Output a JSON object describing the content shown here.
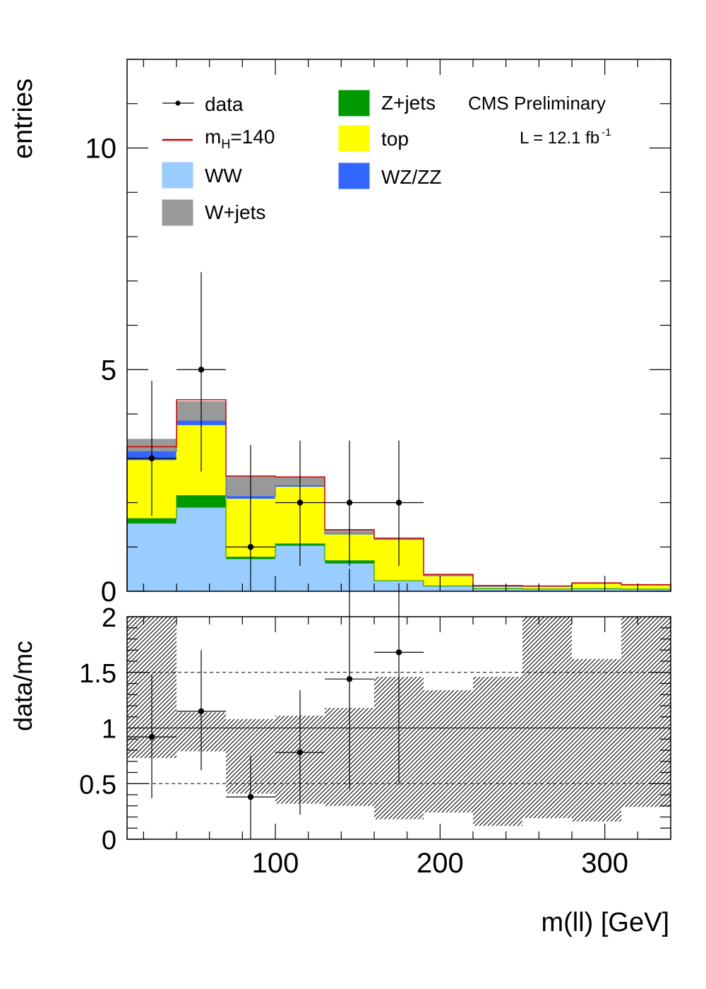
{
  "chart_data": [
    {
      "type": "bar",
      "subtype": "stacked-histogram",
      "bin_edges": [
        10,
        40,
        70,
        100,
        130,
        160,
        190,
        220,
        250,
        280,
        310,
        340
      ],
      "ylabel": "entries",
      "ylim": [
        0,
        12
      ],
      "yticks": [
        0,
        5,
        10
      ],
      "experiment_label": "CMS Preliminary",
      "lumi_label": "L = 12.1 fb",
      "lumi_sup": "-1",
      "stack": [
        {
          "name": "WW",
          "color": "#99ccff",
          "values": [
            1.52,
            1.88,
            0.72,
            1.02,
            0.62,
            0.24,
            0.12,
            0.06,
            0.05,
            0.06,
            0.05
          ]
        },
        {
          "name": "Z+jets",
          "color": "#009900",
          "values": [
            0.12,
            0.28,
            0.05,
            0.05,
            0.07,
            0.0,
            0.0,
            0.0,
            0.0,
            0.0,
            0.0
          ]
        },
        {
          "name": "top",
          "color": "#ffff00",
          "values": [
            1.31,
            1.58,
            1.31,
            1.28,
            0.6,
            0.93,
            0.23,
            0.05,
            0.06,
            0.12,
            0.09
          ]
        },
        {
          "name": "WZ/ZZ",
          "color": "#3366ff",
          "values": [
            0.2,
            0.1,
            0.06,
            0.03,
            0.0,
            0.0,
            0.0,
            0.0,
            0.0,
            0.0,
            0.0
          ]
        },
        {
          "name": "W+jets",
          "color": "#999999",
          "values": [
            0.28,
            0.44,
            0.46,
            0.19,
            0.09,
            0.03,
            0.03,
            0.02,
            0.01,
            0.01,
            0.01
          ]
        }
      ],
      "signal": {
        "name": "m_H=140",
        "label_main": "m",
        "label_sub": "H",
        "label_rest": "=140",
        "color": "#cc0000",
        "values": [
          3.26,
          4.32,
          2.6,
          2.58,
          1.39,
          1.2,
          0.38,
          0.13,
          0.12,
          0.19,
          0.15
        ]
      },
      "data_points": {
        "name": "data",
        "x": [
          25,
          55,
          85,
          115,
          145,
          175
        ],
        "y": [
          3,
          5,
          1,
          2,
          2,
          2
        ],
        "err_low": [
          1.3,
          2.3,
          1.0,
          1.43,
          1.43,
          1.43
        ],
        "err_high": [
          1.75,
          2.2,
          2.3,
          1.4,
          1.4,
          1.4
        ]
      },
      "legend": {
        "col1": [
          "data",
          "m_H=140",
          "WW",
          "W+jets"
        ],
        "col2": [
          "Z+jets",
          "top",
          "WZ/ZZ"
        ],
        "placement": "top"
      },
      "labels": {
        "data": "data",
        "ww": "WW",
        "wjets": "W+jets",
        "zjets": "Z+jets",
        "top": "top",
        "wzzz": "WZ/ZZ"
      }
    },
    {
      "type": "bar",
      "subtype": "ratio",
      "bin_edges": [
        10,
        40,
        70,
        100,
        130,
        160,
        190,
        220,
        250,
        280,
        310,
        340
      ],
      "ylabel": "data/mc",
      "xlabel": "m(ll) [GeV]",
      "ylim": [
        0,
        2
      ],
      "yticks": [
        0,
        0.5,
        1,
        1.5,
        2
      ],
      "ytick_labels": [
        "0",
        "0.5",
        "1",
        "1.5",
        "2"
      ],
      "xlim": [
        10,
        340
      ],
      "xticks": [
        100,
        200,
        300
      ],
      "xtick_labels": [
        "100",
        "200",
        "300"
      ],
      "reference_lines": [
        0.5,
        1,
        1.5
      ],
      "uncertainty_band": {
        "low": [
          0.73,
          0.79,
          0.41,
          0.32,
          0.3,
          0.18,
          0.24,
          0.12,
          0.19,
          0.16,
          0.29
        ],
        "high": [
          2.0,
          1.14,
          1.08,
          1.11,
          1.18,
          1.46,
          1.34,
          1.46,
          2.0,
          1.62,
          2.0
        ]
      },
      "data_points": {
        "x": [
          25,
          55,
          85,
          115,
          145,
          175
        ],
        "y": [
          0.92,
          1.15,
          0.38,
          0.78,
          1.44,
          1.68
        ],
        "err_low": [
          0.55,
          0.53,
          0.38,
          0.56,
          0.99,
          1.19
        ],
        "err_high": [
          0.56,
          0.55,
          0.37,
          0.56,
          0.99,
          0.62
        ]
      }
    }
  ]
}
